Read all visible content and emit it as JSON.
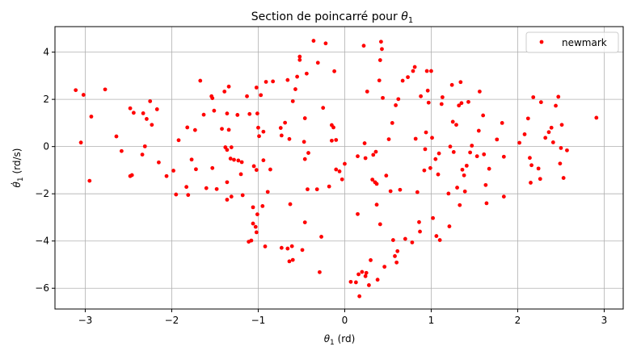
{
  "chart_data": {
    "type": "scatter",
    "title_prefix": "Section de poincarré pour ",
    "title_symbol": "θ",
    "title_sub": "1",
    "xlabel_symbol": "θ",
    "xlabel_sub": "1",
    "xlabel_unit": " (rd)",
    "ylabel_symbol": "θ̇",
    "ylabel_sub": "1",
    "ylabel_unit": " (rd/s)",
    "xlim": [
      -3.35,
      3.22
    ],
    "ylim": [
      -6.88,
      5.08
    ],
    "xticks": [
      -3,
      -2,
      -1,
      0,
      1,
      2,
      3
    ],
    "yticks": [
      -6,
      -4,
      -2,
      0,
      2,
      4
    ],
    "xtick_labels": [
      "−3",
      "−2",
      "−1",
      "0",
      "1",
      "2",
      "3"
    ],
    "ytick_labels": [
      "−6",
      "−4",
      "−2",
      "0",
      "2",
      "4"
    ],
    "grid": true,
    "legend_position": "top-right",
    "marker_color": "#ff0000",
    "series": [
      {
        "name": "newmark",
        "points": [
          [
            -3.11,
            2.39
          ],
          [
            -3.02,
            2.19
          ],
          [
            -3.05,
            0.17
          ],
          [
            -2.93,
            1.27
          ],
          [
            -2.95,
            -1.45
          ],
          [
            -2.77,
            2.42
          ],
          [
            -2.64,
            0.43
          ],
          [
            -2.58,
            -0.19
          ],
          [
            -2.48,
            1.62
          ],
          [
            -2.44,
            1.43
          ],
          [
            -2.48,
            -1.25
          ],
          [
            -2.46,
            -1.21
          ],
          [
            -2.33,
            1.41
          ],
          [
            -2.29,
            1.17
          ],
          [
            -2.25,
            1.92
          ],
          [
            -2.23,
            0.92
          ],
          [
            -2.17,
            1.58
          ],
          [
            -2.31,
            0.01
          ],
          [
            -2.34,
            -0.34
          ],
          [
            -2.15,
            -0.67
          ],
          [
            -2.06,
            -1.25
          ],
          [
            -1.98,
            -1.02
          ],
          [
            -1.95,
            -2.03
          ],
          [
            -1.92,
            0.27
          ],
          [
            -1.83,
            -1.71
          ],
          [
            -1.81,
            -2.05
          ],
          [
            -1.82,
            0.81
          ],
          [
            -1.77,
            -0.55
          ],
          [
            -1.73,
            0.7
          ],
          [
            -1.72,
            -0.96
          ],
          [
            -1.67,
            2.79
          ],
          [
            -1.63,
            1.35
          ],
          [
            -1.6,
            -1.76
          ],
          [
            -1.54,
            2.13
          ],
          [
            -1.53,
            2.05
          ],
          [
            -1.53,
            -0.91
          ],
          [
            -1.51,
            1.52
          ],
          [
            -1.48,
            -1.8
          ],
          [
            -1.42,
            0.75
          ],
          [
            -1.39,
            2.33
          ],
          [
            -1.34,
            2.54
          ],
          [
            -1.36,
            1.4
          ],
          [
            -1.34,
            0.71
          ],
          [
            -1.32,
            -0.51
          ],
          [
            -1.28,
            -0.56
          ],
          [
            -1.38,
            -0.03
          ],
          [
            -1.36,
            -0.14
          ],
          [
            -1.31,
            -0.03
          ],
          [
            -1.36,
            -1.51
          ],
          [
            -1.31,
            -2.12
          ],
          [
            -1.36,
            -2.25
          ],
          [
            -1.24,
            1.34
          ],
          [
            -1.23,
            -0.59
          ],
          [
            -1.19,
            -0.66
          ],
          [
            -1.2,
            -1.17
          ],
          [
            -1.18,
            -2.06
          ],
          [
            -1.13,
            2.13
          ],
          [
            -1.1,
            1.38
          ],
          [
            -1.05,
            -0.83
          ],
          [
            -1.06,
            -2.57
          ],
          [
            -1.06,
            -3.26
          ],
          [
            -1.08,
            -3.98
          ],
          [
            -1.11,
            -4.03
          ],
          [
            -1.03,
            -3.4
          ],
          [
            -1.02,
            -3.63
          ],
          [
            -1.01,
            -2.87
          ],
          [
            -1.02,
            2.5
          ],
          [
            -1.01,
            1.4
          ],
          [
            -0.97,
            2.18
          ],
          [
            -1.0,
            0.8
          ],
          [
            -0.99,
            0.44
          ],
          [
            -1.02,
            -0.99
          ],
          [
            -0.94,
            -0.58
          ],
          [
            -0.95,
            -2.52
          ],
          [
            -0.92,
            -4.23
          ],
          [
            -0.89,
            -1.92
          ],
          [
            -0.86,
            -0.97
          ],
          [
            -0.91,
            2.74
          ],
          [
            -0.83,
            2.76
          ],
          [
            -0.94,
            0.63
          ],
          [
            -0.74,
            0.79
          ],
          [
            -0.73,
            0.47
          ],
          [
            -0.69,
            1.01
          ],
          [
            -0.66,
            2.82
          ],
          [
            -0.73,
            -4.29
          ],
          [
            -0.66,
            -4.32
          ],
          [
            -0.63,
            -2.44
          ],
          [
            -0.64,
            0.32
          ],
          [
            -0.61,
            -4.22
          ],
          [
            -0.64,
            -4.86
          ],
          [
            -0.6,
            -4.8
          ],
          [
            -0.6,
            1.92
          ],
          [
            -0.57,
            2.43
          ],
          [
            -0.55,
            2.96
          ],
          [
            -0.52,
            3.81
          ],
          [
            -0.52,
            3.67
          ],
          [
            -0.46,
            1.2
          ],
          [
            -0.47,
            0.2
          ],
          [
            -0.46,
            -0.53
          ],
          [
            -0.46,
            -3.21
          ],
          [
            -0.49,
            -4.38
          ],
          [
            -0.43,
            -1.81
          ],
          [
            -0.44,
            3.09
          ],
          [
            -0.42,
            -0.27
          ],
          [
            -0.36,
            4.48
          ],
          [
            -0.31,
            3.55
          ],
          [
            -0.32,
            -1.81
          ],
          [
            -0.27,
            -3.82
          ],
          [
            -0.29,
            -5.32
          ],
          [
            -0.25,
            1.64
          ],
          [
            -0.22,
            4.37
          ],
          [
            -0.18,
            -1.69
          ],
          [
            -0.15,
            0.91
          ],
          [
            -0.15,
            0.25
          ],
          [
            -0.13,
            0.81
          ],
          [
            -0.12,
            3.19
          ],
          [
            -0.1,
            0.28
          ],
          [
            -0.1,
            -0.97
          ],
          [
            -0.06,
            -1.05
          ],
          [
            -0.03,
            -1.39
          ],
          [
            0.0,
            -0.73
          ],
          [
            0.07,
            -5.73
          ],
          [
            0.13,
            -5.75
          ],
          [
            0.15,
            -0.41
          ],
          [
            0.15,
            -2.86
          ],
          [
            0.16,
            -5.41
          ],
          [
            0.17,
            -6.34
          ],
          [
            0.2,
            -5.31
          ],
          [
            0.22,
            4.27
          ],
          [
            0.23,
            0.14
          ],
          [
            0.24,
            -0.49
          ],
          [
            0.24,
            -5.49
          ],
          [
            0.25,
            -5.35
          ],
          [
            0.26,
            2.33
          ],
          [
            0.28,
            -5.87
          ],
          [
            0.3,
            -4.81
          ],
          [
            0.32,
            -1.4
          ],
          [
            0.33,
            -0.35
          ],
          [
            0.35,
            -1.51
          ],
          [
            0.36,
            -0.22
          ],
          [
            0.37,
            -1.58
          ],
          [
            0.37,
            -2.46
          ],
          [
            0.38,
            -5.64
          ],
          [
            0.4,
            2.8
          ],
          [
            0.41,
            3.66
          ],
          [
            0.42,
            4.44
          ],
          [
            0.43,
            4.13
          ],
          [
            0.41,
            -3.29
          ],
          [
            0.44,
            2.06
          ],
          [
            0.46,
            -5.09
          ],
          [
            0.48,
            -1.23
          ],
          [
            0.51,
            0.31
          ],
          [
            0.53,
            -1.89
          ],
          [
            0.55,
            1.0
          ],
          [
            0.56,
            -3.96
          ],
          [
            0.58,
            -4.64
          ],
          [
            0.59,
            1.75
          ],
          [
            0.6,
            -4.91
          ],
          [
            0.61,
            -4.43
          ],
          [
            0.62,
            2.01
          ],
          [
            0.64,
            -1.83
          ],
          [
            0.67,
            2.79
          ],
          [
            0.7,
            -3.91
          ],
          [
            0.73,
            2.94
          ],
          [
            0.78,
            -4.06
          ],
          [
            0.79,
            3.2
          ],
          [
            0.81,
            3.37
          ],
          [
            0.82,
            0.33
          ],
          [
            0.84,
            -1.93
          ],
          [
            0.86,
            -3.2
          ],
          [
            0.87,
            -3.6
          ],
          [
            0.88,
            2.13
          ],
          [
            0.92,
            -1.01
          ],
          [
            0.93,
            -0.11
          ],
          [
            0.94,
            0.6
          ],
          [
            0.95,
            3.2
          ],
          [
            0.96,
            2.37
          ],
          [
            0.97,
            1.86
          ],
          [
            0.99,
            -0.91
          ],
          [
            1.0,
            3.2
          ],
          [
            1.01,
            0.37
          ],
          [
            1.02,
            -3.03
          ],
          [
            1.05,
            -0.53
          ],
          [
            1.06,
            -3.79
          ],
          [
            1.08,
            -1.18
          ],
          [
            1.09,
            -0.29
          ],
          [
            1.1,
            -3.96
          ],
          [
            1.12,
            1.8
          ],
          [
            1.13,
            2.09
          ],
          [
            1.2,
            -1.99
          ],
          [
            1.21,
            -3.38
          ],
          [
            1.22,
            0.0
          ],
          [
            1.24,
            2.61
          ],
          [
            1.25,
            1.05
          ],
          [
            1.26,
            -0.23
          ],
          [
            1.29,
            0.92
          ],
          [
            1.3,
            -1.74
          ],
          [
            1.32,
            1.74
          ],
          [
            1.33,
            -2.48
          ],
          [
            1.34,
            2.73
          ],
          [
            1.35,
            1.84
          ],
          [
            1.36,
            -0.98
          ],
          [
            1.38,
            -1.22
          ],
          [
            1.39,
            -1.9
          ],
          [
            1.41,
            -0.81
          ],
          [
            1.43,
            1.89
          ],
          [
            1.45,
            -0.25
          ],
          [
            1.47,
            0.04
          ],
          [
            1.53,
            -0.41
          ],
          [
            1.55,
            0.67
          ],
          [
            1.56,
            2.33
          ],
          [
            1.6,
            1.32
          ],
          [
            1.61,
            -0.33
          ],
          [
            1.63,
            -1.63
          ],
          [
            1.64,
            -2.4
          ],
          [
            1.67,
            -0.94
          ],
          [
            1.76,
            0.3
          ],
          [
            1.82,
            1.0
          ],
          [
            1.84,
            -2.12
          ],
          [
            1.84,
            -0.43
          ],
          [
            2.02,
            0.16
          ],
          [
            2.08,
            0.52
          ],
          [
            2.12,
            1.19
          ],
          [
            2.14,
            -0.48
          ],
          [
            2.15,
            -1.53
          ],
          [
            2.16,
            -0.79
          ],
          [
            2.18,
            2.09
          ],
          [
            2.24,
            -0.93
          ],
          [
            2.26,
            -1.37
          ],
          [
            2.27,
            1.88
          ],
          [
            2.32,
            0.37
          ],
          [
            2.36,
            0.61
          ],
          [
            2.39,
            0.8
          ],
          [
            2.41,
            0.18
          ],
          [
            2.44,
            1.73
          ],
          [
            2.47,
            2.11
          ],
          [
            2.49,
            -0.72
          ],
          [
            2.5,
            -0.06
          ],
          [
            2.51,
            0.92
          ],
          [
            2.53,
            -1.33
          ],
          [
            2.57,
            -0.16
          ],
          [
            2.91,
            1.22
          ]
        ]
      }
    ]
  }
}
